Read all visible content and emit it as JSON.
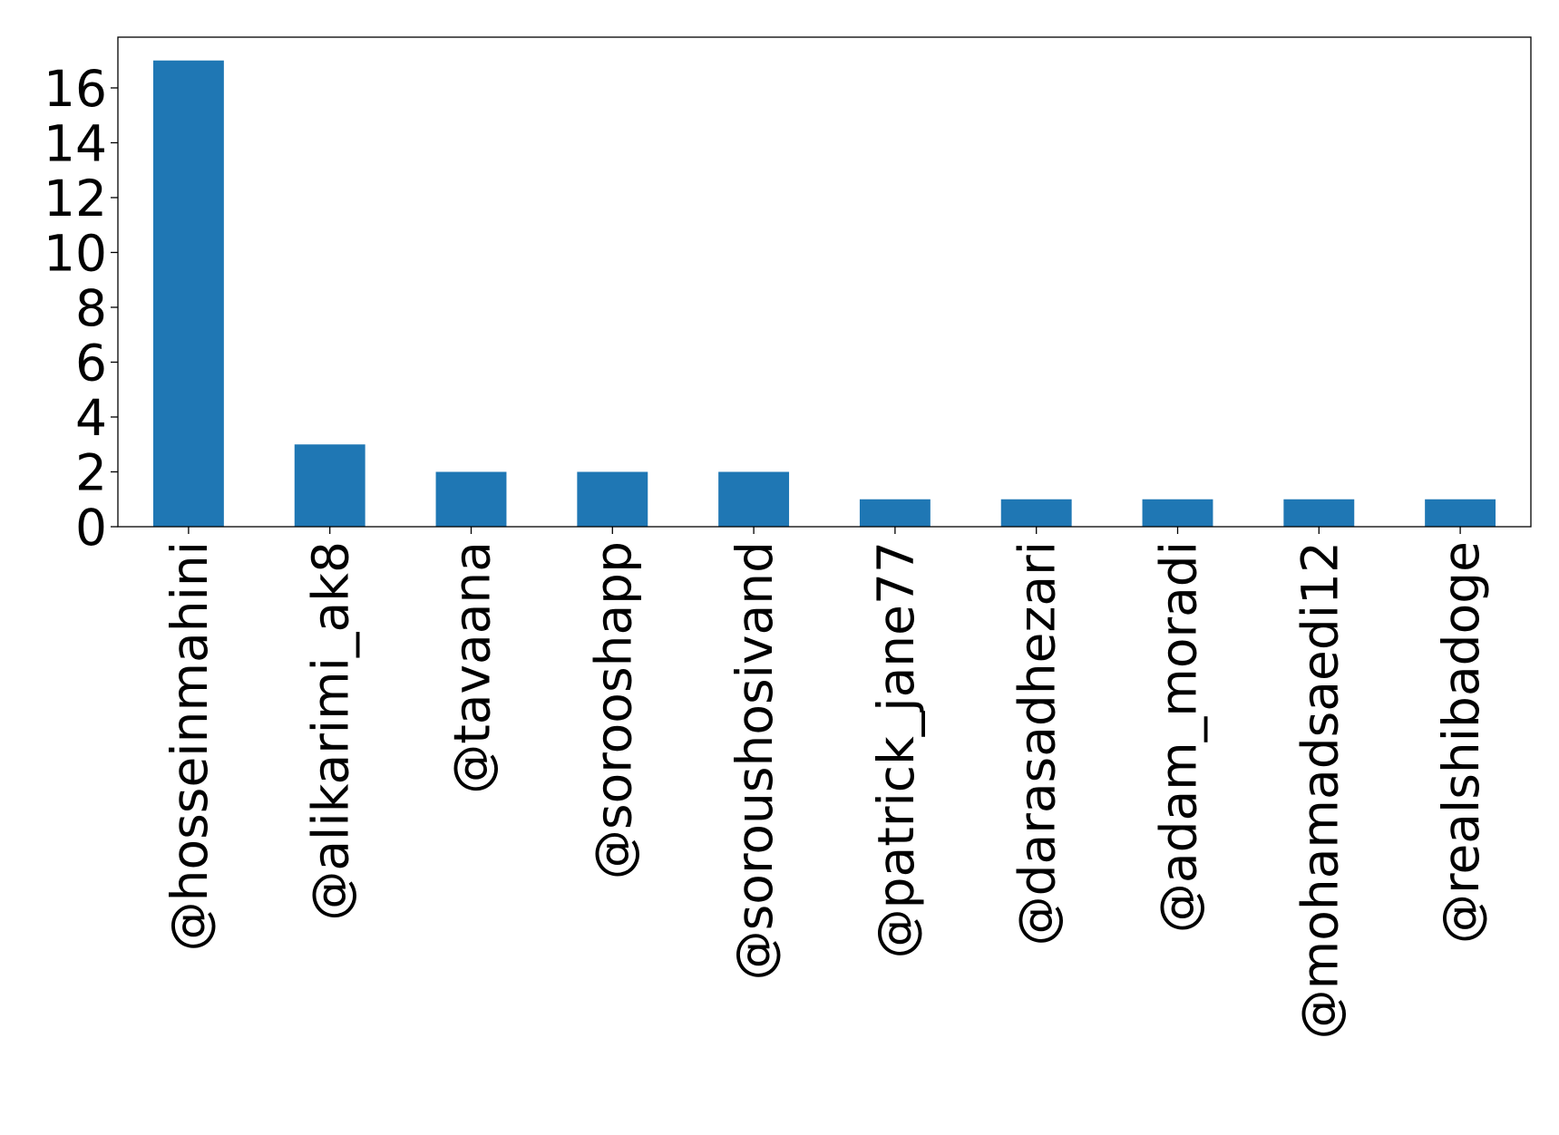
{
  "chart_data": {
    "type": "bar",
    "categories": [
      "@hosseinmahini",
      "@alikarimi_ak8",
      "@tavaana",
      "@sorooshapp",
      "@soroushosivand",
      "@patrick_jane77",
      "@darasadhezari",
      "@adam_moradi",
      "@mohamadsaedi12",
      "@realshibadoge"
    ],
    "values": [
      17,
      3,
      2,
      2,
      2,
      1,
      1,
      1,
      1,
      1
    ],
    "yticks": [
      0,
      2,
      4,
      6,
      8,
      10,
      12,
      14,
      16
    ],
    "ylim": [
      0,
      17.85
    ],
    "bar_color": "#1f77b4",
    "grid": false,
    "legend": "none"
  }
}
